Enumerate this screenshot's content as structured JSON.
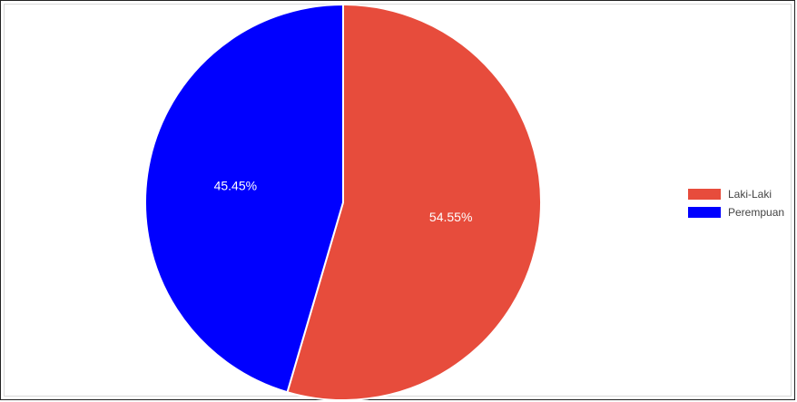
{
  "chart_data": {
    "type": "pie",
    "title": "",
    "categories": [
      "Laki-Laki",
      "Perempuan"
    ],
    "values": [
      54.55,
      45.45
    ],
    "labels": [
      "54.55%",
      "45.45%"
    ],
    "colors": [
      "#e74c3c",
      "#0000ff"
    ],
    "legend_position": "right"
  }
}
